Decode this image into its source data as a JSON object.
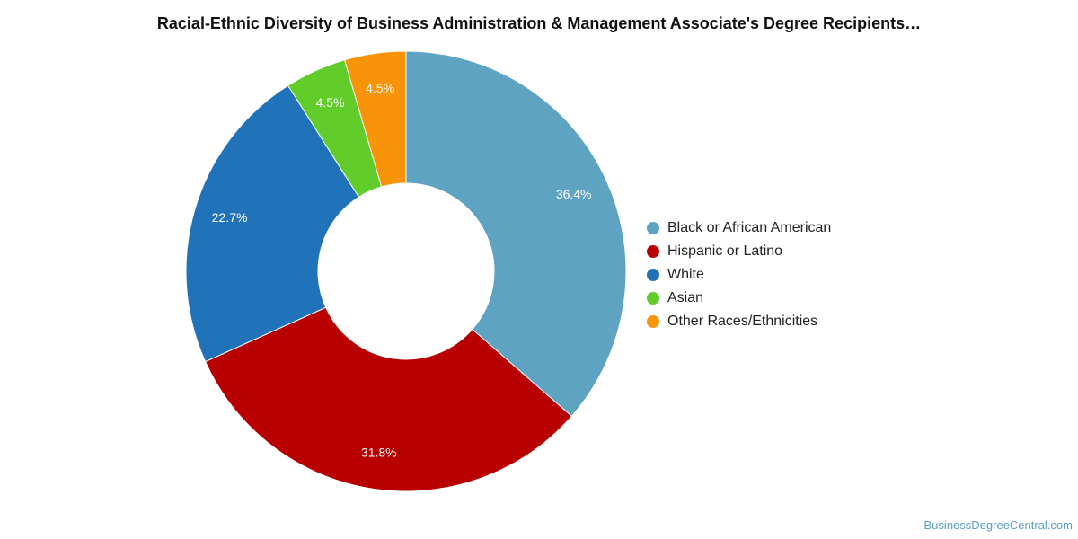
{
  "title": "Racial-Ethnic Diversity of Business Administration & Management Associate's Degree Recipients…",
  "watermark": "BusinessDegreeCentral.com",
  "chart_data": {
    "type": "pie",
    "donut": true,
    "title": "Racial-Ethnic Diversity of Business Administration & Management Associate's Degree Recipients…",
    "legend_position": "right",
    "categories": [
      "Black or African American",
      "Hispanic or Latino",
      "White",
      "Asian",
      "Other Races/Ethnicities"
    ],
    "values": [
      36.4,
      31.8,
      22.7,
      4.5,
      4.5
    ],
    "data_labels": [
      "36.4%",
      "31.8%",
      "22.7%",
      "4.5%",
      "4.5%"
    ],
    "colors": [
      "#5ea3c1",
      "#b80000",
      "#2072b9",
      "#62cd2a",
      "#f89408"
    ]
  }
}
